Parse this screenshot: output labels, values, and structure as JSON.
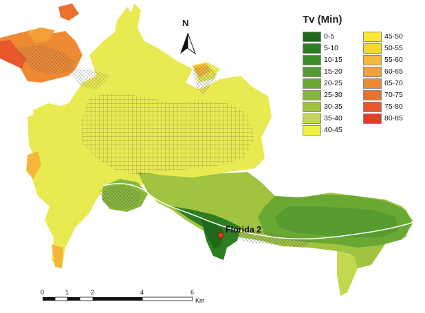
{
  "legend": {
    "title": "Tv (Min)",
    "items": [
      {
        "label": "0-5",
        "color": "#1f6a1a"
      },
      {
        "label": "5-10",
        "color": "#2f7d22"
      },
      {
        "label": "10-15",
        "color": "#3f8c2a"
      },
      {
        "label": "15-20",
        "color": "#559b2e"
      },
      {
        "label": "20-25",
        "color": "#6aa834"
      },
      {
        "label": "25-30",
        "color": "#86b83a"
      },
      {
        "label": "30-35",
        "color": "#a0c440"
      },
      {
        "label": "35-40",
        "color": "#c4d84e"
      },
      {
        "label": "40-45",
        "color": "#f2f23a"
      },
      {
        "label": "45-50",
        "color": "#fbe63a"
      },
      {
        "label": "50-55",
        "color": "#f8d339"
      },
      {
        "label": "55-60",
        "color": "#f4b93a"
      },
      {
        "label": "60-65",
        "color": "#f2a03a"
      },
      {
        "label": "65-70",
        "color": "#ef8a34"
      },
      {
        "label": "70-75",
        "color": "#ec7030"
      },
      {
        "label": "75-80",
        "color": "#e9572c"
      },
      {
        "label": "80-85",
        "color": "#e43b26"
      }
    ]
  },
  "site": {
    "label": "Florida 2",
    "marker_color": "#e53a2a"
  },
  "north_arrow": {
    "letter": "N"
  },
  "scale_bar": {
    "ticks": [
      "0",
      "1",
      "2",
      "4",
      "6"
    ],
    "unit": "Km"
  }
}
